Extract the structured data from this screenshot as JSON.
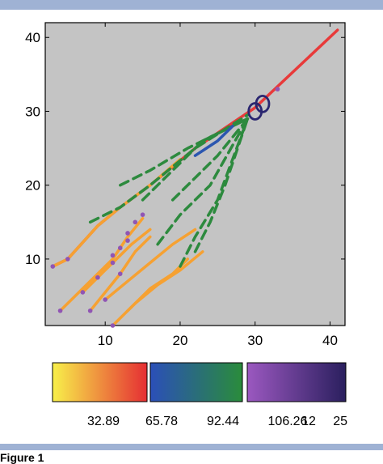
{
  "caption": "Figure 1",
  "chart_data": {
    "type": "line",
    "title": "",
    "xlabel": "",
    "ylabel": "",
    "xlim": [
      2,
      42
    ],
    "ylim": [
      1,
      42
    ],
    "xticks": [
      10,
      20,
      30,
      40
    ],
    "yticks": [
      10,
      20,
      30,
      40
    ],
    "grid": false,
    "background": "#c4c4c4",
    "colors": {
      "orange": "#f6a132",
      "red": "#e83a3a",
      "blue": "#2b56b0",
      "green": "#2d8a3e",
      "dot": "#9055b4",
      "circle": "#2a2670"
    },
    "series": [
      {
        "style": "red",
        "points": [
          [
            3,
            9
          ],
          [
            5,
            10
          ],
          [
            9,
            14.5
          ],
          [
            12,
            17
          ],
          [
            16,
            20
          ],
          [
            22,
            25
          ],
          [
            30,
            30.5
          ],
          [
            41,
            41
          ]
        ]
      },
      {
        "style": "orange",
        "points": [
          [
            3,
            9
          ],
          [
            5,
            10
          ],
          [
            9,
            14.5
          ],
          [
            12,
            17
          ],
          [
            16,
            20
          ],
          [
            20,
            23.5
          ]
        ]
      },
      {
        "style": "orange",
        "points": [
          [
            4,
            3
          ],
          [
            6,
            5
          ],
          [
            9,
            8
          ],
          [
            11,
            10
          ],
          [
            13,
            13
          ],
          [
            15,
            15.5
          ]
        ]
      },
      {
        "style": "orange",
        "points": [
          [
            7,
            5.5
          ],
          [
            9,
            7.5
          ],
          [
            11,
            9.5
          ],
          [
            13.5,
            12
          ],
          [
            16,
            14
          ]
        ]
      },
      {
        "style": "orange",
        "points": [
          [
            8,
            3
          ],
          [
            10,
            5.5
          ],
          [
            12,
            8
          ],
          [
            14,
            11
          ],
          [
            16,
            13
          ]
        ]
      },
      {
        "style": "orange",
        "points": [
          [
            10,
            4.5
          ],
          [
            13,
            7
          ],
          [
            16,
            9.5
          ],
          [
            19,
            12
          ],
          [
            22,
            14
          ]
        ]
      },
      {
        "style": "orange",
        "points": [
          [
            11,
            1
          ],
          [
            14,
            4
          ],
          [
            17,
            6.5
          ],
          [
            20,
            8.5
          ],
          [
            23,
            11
          ]
        ]
      },
      {
        "style": "orange",
        "points": [
          [
            13,
            3
          ],
          [
            16,
            6
          ],
          [
            19,
            8
          ],
          [
            21,
            10
          ]
        ]
      },
      {
        "style": "green",
        "points": [
          [
            8,
            15
          ],
          [
            12,
            17
          ],
          [
            16,
            20
          ],
          [
            22,
            25
          ],
          [
            29,
            29.5
          ]
        ]
      },
      {
        "style": "green",
        "points": [
          [
            12,
            20
          ],
          [
            16,
            22
          ],
          [
            21,
            25
          ],
          [
            25,
            27
          ],
          [
            29,
            29
          ]
        ]
      },
      {
        "style": "green",
        "points": [
          [
            15,
            18
          ],
          [
            19,
            22
          ],
          [
            23,
            26
          ],
          [
            29,
            29
          ]
        ]
      },
      {
        "style": "green",
        "points": [
          [
            17,
            12
          ],
          [
            20,
            16
          ],
          [
            24,
            20
          ],
          [
            29,
            29
          ]
        ]
      },
      {
        "style": "green",
        "points": [
          [
            20,
            9
          ],
          [
            22,
            13
          ],
          [
            25,
            18
          ],
          [
            29,
            29
          ]
        ]
      },
      {
        "style": "green",
        "points": [
          [
            22,
            11
          ],
          [
            24,
            15
          ],
          [
            26,
            20
          ],
          [
            29,
            29
          ]
        ]
      },
      {
        "style": "green",
        "points": [
          [
            19,
            18
          ],
          [
            22,
            21
          ],
          [
            25,
            24
          ],
          [
            29,
            29
          ]
        ]
      },
      {
        "style": "blue",
        "points": [
          [
            22,
            24
          ],
          [
            25,
            26
          ],
          [
            27,
            28
          ]
        ]
      }
    ],
    "dots": [
      [
        3,
        9
      ],
      [
        5,
        10
      ],
      [
        4,
        3
      ],
      [
        8,
        3
      ],
      [
        10,
        4.5
      ],
      [
        7,
        5.5
      ],
      [
        9,
        7.5
      ],
      [
        11,
        9.5
      ],
      [
        11,
        10.5
      ],
      [
        12,
        11.5
      ],
      [
        13,
        12.5
      ],
      [
        13,
        13.5
      ],
      [
        14,
        15
      ],
      [
        15,
        16
      ],
      [
        11,
        1
      ],
      [
        12,
        8
      ],
      [
        33,
        33
      ]
    ],
    "circles": [
      [
        30,
        30
      ],
      [
        31,
        31
      ]
    ],
    "colorbar": {
      "segments": [
        {
          "from": "#f8f04a",
          "to": "#e52e33"
        },
        {
          "from": "#2b4fb8",
          "to": "#2a8c3b"
        },
        {
          "from": "#9b58c0",
          "to": "#2a1f5e"
        }
      ],
      "labels": [
        "32.89",
        "65.78",
        "92.44",
        "106.26",
        "12",
        "25"
      ]
    }
  }
}
